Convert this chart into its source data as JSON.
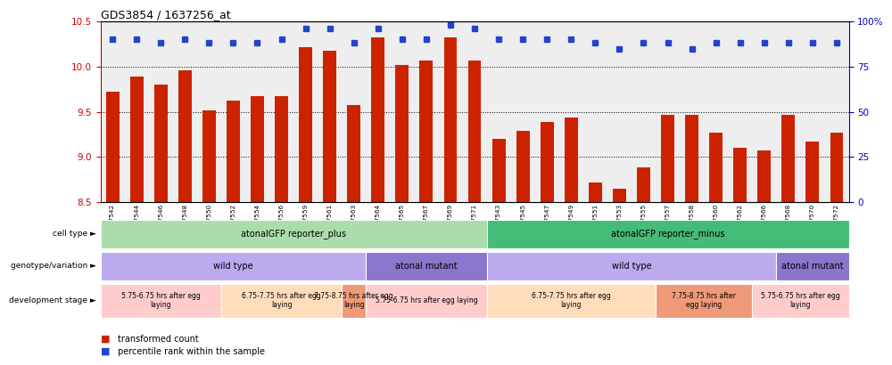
{
  "title": "GDS3854 / 1637256_at",
  "samples": [
    "GSM537542",
    "GSM537544",
    "GSM537546",
    "GSM537548",
    "GSM537550",
    "GSM537552",
    "GSM537554",
    "GSM537556",
    "GSM537559",
    "GSM537561",
    "GSM537563",
    "GSM537564",
    "GSM537565",
    "GSM537567",
    "GSM537569",
    "GSM537571",
    "GSM537543",
    "GSM537545",
    "GSM537547",
    "GSM537549",
    "GSM537551",
    "GSM537553",
    "GSM537555",
    "GSM537557",
    "GSM537558",
    "GSM537560",
    "GSM537562",
    "GSM537566",
    "GSM537568",
    "GSM537570",
    "GSM537572"
  ],
  "bar_values": [
    9.72,
    9.89,
    9.8,
    9.96,
    9.52,
    9.62,
    9.67,
    9.67,
    10.22,
    10.18,
    9.57,
    10.32,
    10.02,
    10.07,
    10.32,
    10.07,
    9.2,
    9.29,
    9.39,
    9.44,
    8.72,
    8.65,
    8.88,
    9.47,
    9.47,
    9.27,
    9.1,
    9.07,
    9.47,
    9.17,
    9.27
  ],
  "pct_rank": [
    90,
    90,
    88,
    90,
    88,
    88,
    88,
    90,
    96,
    96,
    88,
    96,
    90,
    90,
    98,
    96,
    90,
    90,
    90,
    90,
    88,
    85,
    88,
    88,
    85,
    88,
    88,
    88,
    88,
    88,
    88
  ],
  "ylim": [
    8.5,
    10.5
  ],
  "yticks_left": [
    8.5,
    9.0,
    9.5,
    10.0,
    10.5
  ],
  "yticks_right": [
    0,
    25,
    50,
    75,
    100
  ],
  "bar_color": "#cc2200",
  "dot_color": "#2244cc",
  "bg_color": "#ffffff",
  "plot_bg": "#eeeeee",
  "tick_color_left": "#cc0000",
  "tick_color_right": "#0000bb",
  "cell_type_regions": [
    {
      "label": "atonalGFP reporter_plus",
      "start": 0,
      "end": 16,
      "color": "#aaddaa"
    },
    {
      "label": "atonalGFP reporter_minus",
      "start": 16,
      "end": 31,
      "color": "#44bb77"
    }
  ],
  "genotype_regions": [
    {
      "label": "wild type",
      "start": 0,
      "end": 11,
      "color": "#bbaaee"
    },
    {
      "label": "atonal mutant",
      "start": 11,
      "end": 16,
      "color": "#8877cc"
    },
    {
      "label": "wild type",
      "start": 16,
      "end": 28,
      "color": "#bbaaee"
    },
    {
      "label": "atonal mutant",
      "start": 28,
      "end": 31,
      "color": "#8877cc"
    }
  ],
  "dev_stage_regions": [
    {
      "label": "5.75-6.75 hrs after egg\nlaying",
      "start": 0,
      "end": 5,
      "color": "#ffcccc"
    },
    {
      "label": "6.75-7.75 hrs after egg\nlaying",
      "start": 5,
      "end": 10,
      "color": "#ffddbb"
    },
    {
      "label": "7.75-8.75 hrs after egg\nlaying",
      "start": 10,
      "end": 11,
      "color": "#ee9977"
    },
    {
      "label": "5.75-6.75 hrs after egg laying",
      "start": 11,
      "end": 16,
      "color": "#ffcccc"
    },
    {
      "label": "6.75-7.75 hrs after egg\nlaying",
      "start": 16,
      "end": 23,
      "color": "#ffddbb"
    },
    {
      "label": "7.75-8.75 hrs after\negg laying",
      "start": 23,
      "end": 27,
      "color": "#ee9977"
    },
    {
      "label": "5.75-6.75 hrs after egg\nlaying",
      "start": 27,
      "end": 31,
      "color": "#ffcccc"
    }
  ],
  "row_labels": [
    "cell type",
    "genotype/variation",
    "development stage"
  ]
}
